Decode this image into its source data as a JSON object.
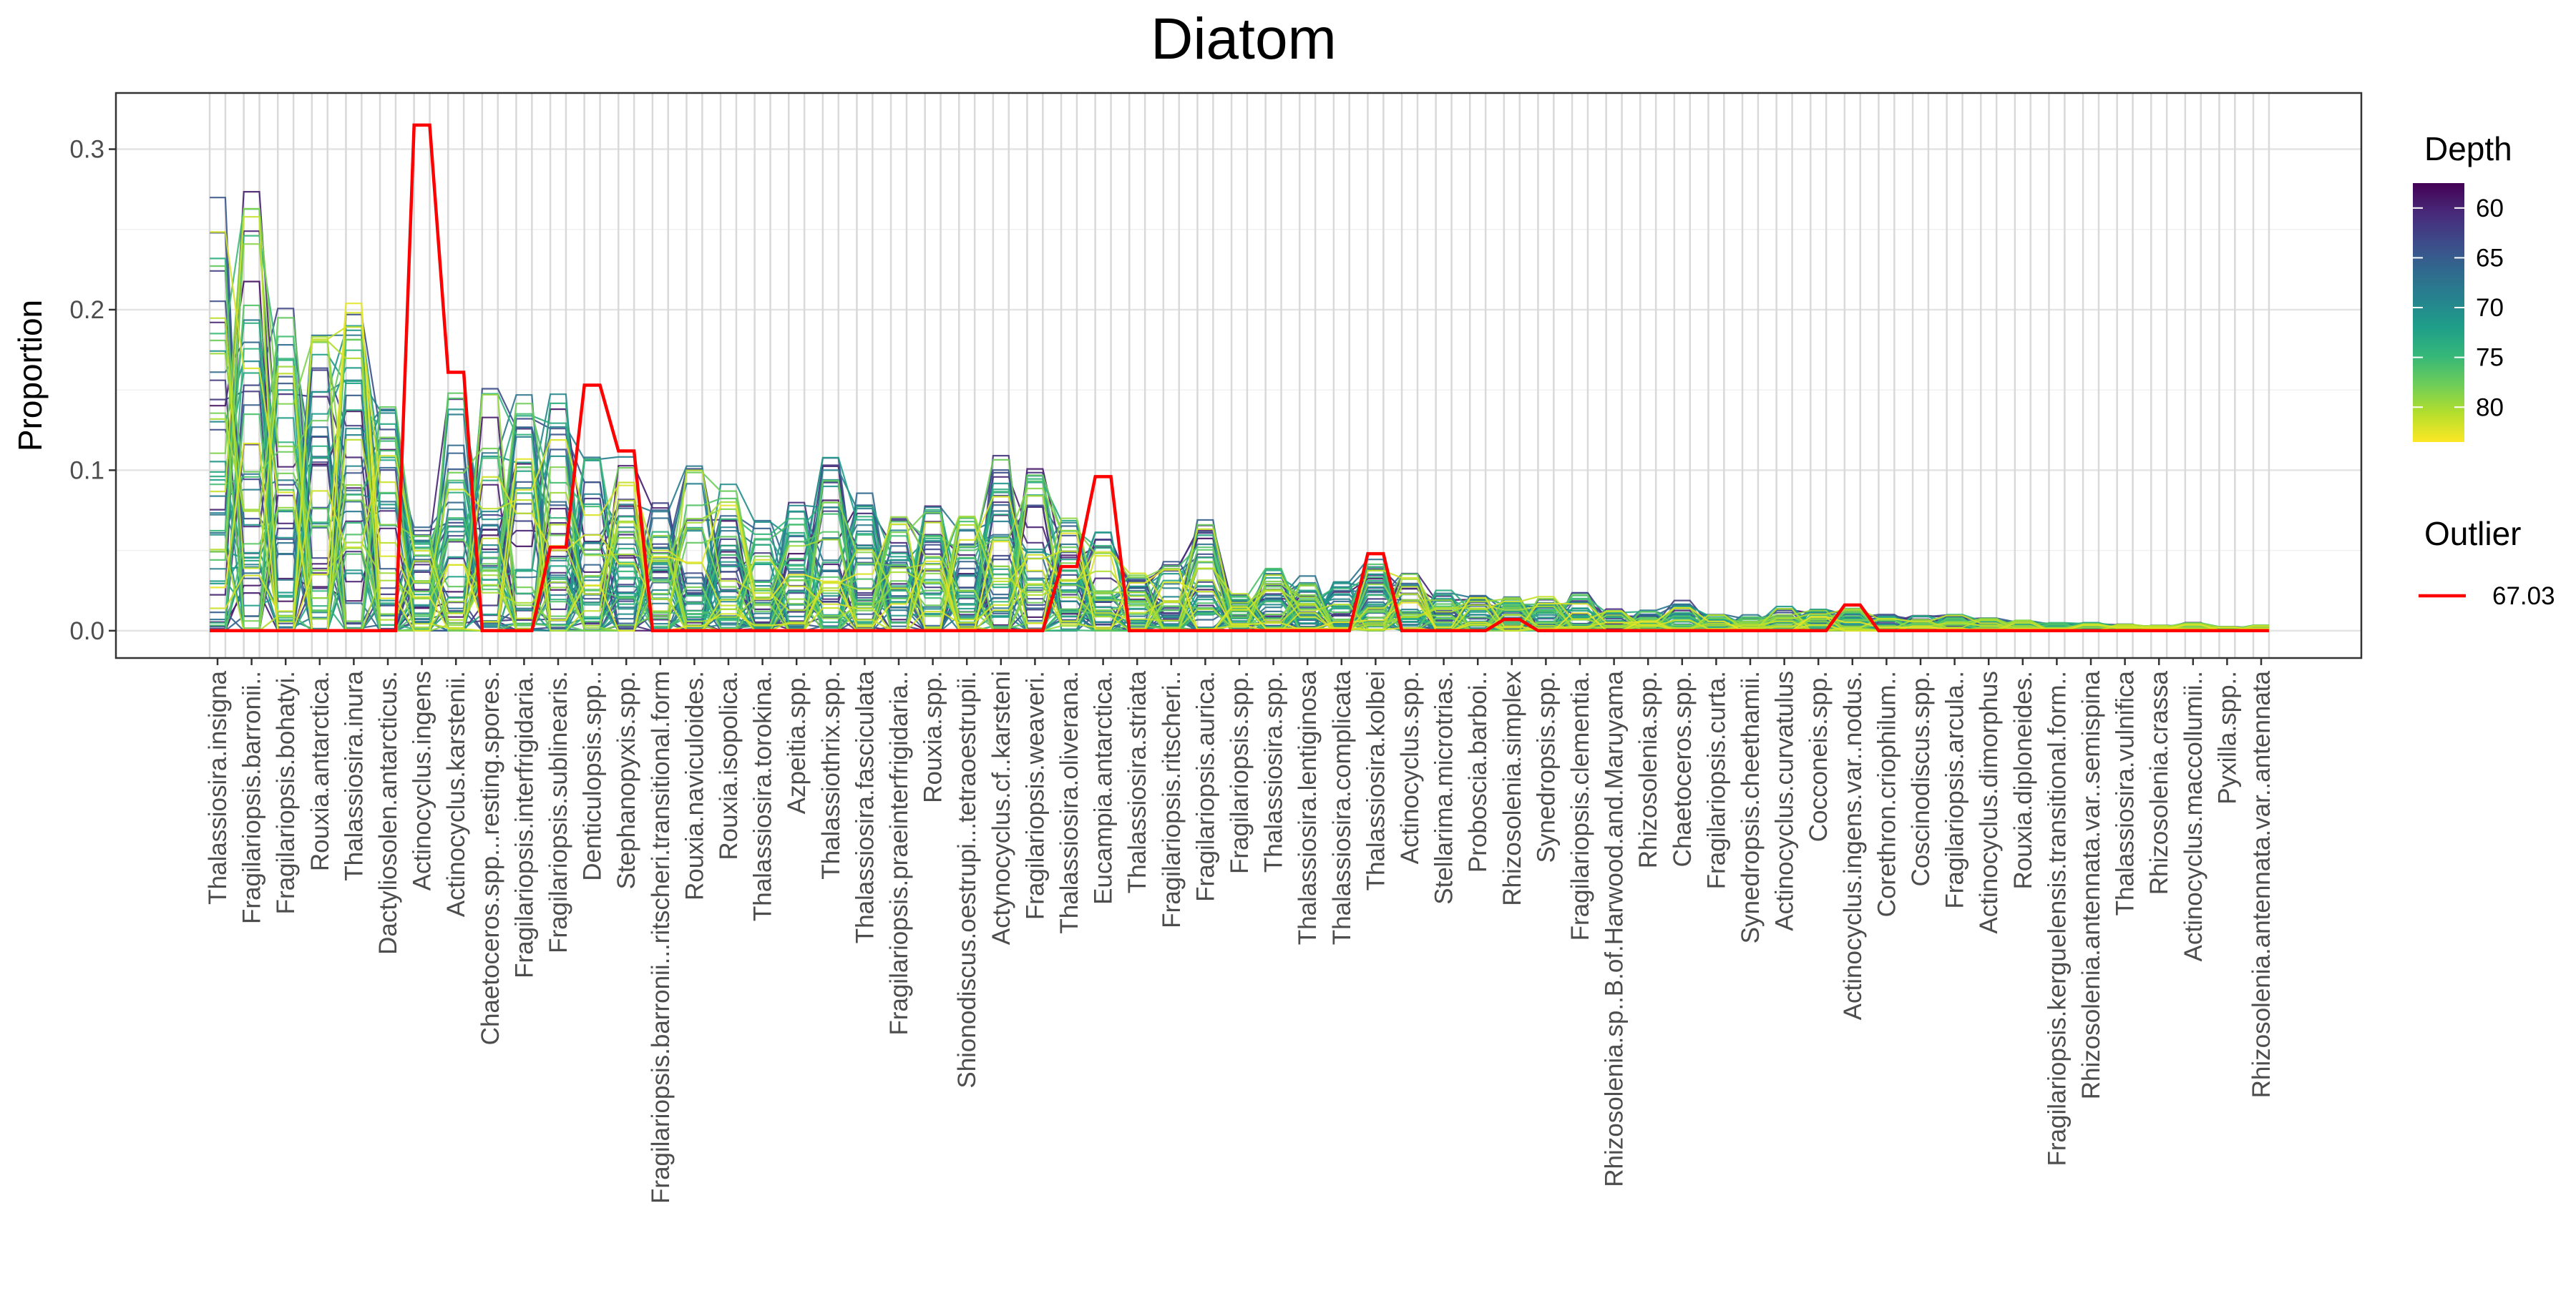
{
  "chart_data": {
    "type": "line",
    "title": "Diatom",
    "xlabel": "",
    "ylabel": "Proportion",
    "ylim": [
      -0.017,
      0.335
    ],
    "yticks": [
      0.0,
      0.1,
      0.2,
      0.3
    ],
    "ytick_labels": [
      "0.0",
      "0.1",
      "0.2",
      "0.3"
    ],
    "grid": true,
    "legend_position": "right",
    "categories": [
      "Thalassiosira.insigna",
      "Fragilariopsis.barronii..",
      "Fragilariopsis.bohatyi.",
      "Rouxia.antarctica.",
      "Thalassiosira.inura",
      "Dactyliosolen.antarcticus.",
      "Actinocyclus.ingens",
      "Actinocyclus.karstenii.",
      "Chaetoceros.spp...resting.spores.",
      "Fragilariopsis.interfrigidaria.",
      "Fragilariopsis.sublinearis.",
      "Denticulopsis.spp..",
      "Stephanopyxis.spp.",
      "Fragilariopsis.barronii...ritscheri.transitional.form",
      "Rouxia.naviculoides.",
      "Rouxia.isopolica.",
      "Thalassiosira.torokina.",
      "Azpeitia.spp.",
      "Thalassiothrix.spp.",
      "Thalassiosira.fasciculata",
      "Fragilariopsis.praeinterfrigidaria..",
      "Rouxia.spp.",
      "Shionodiscus.oestrupi...tetraoestrupii.",
      "Actynocyclus.cf..karsteni",
      "Fragilariopsis.weaveri.",
      "Thalassiosira.oliverana.",
      "Eucampia.antarctica.",
      "Thalassiosira.striata",
      "Fragilariopsis.ritscheri..",
      "Fragilariopsis.aurica.",
      "Fragilariopsis.spp.",
      "Thalassiosira.spp.",
      "Thalassiosira.lentiginosa",
      "Thalassiosira.complicata",
      "Thalassiosira.kolbei",
      "Actinocyclus.spp.",
      "Stellarima.microtrias.",
      "Proboscia.barboi..",
      "Rhizosolenia.simplex",
      "Synedropsis.spp.",
      "Fragilariopsis.clementia.",
      "Rhizosolenia.sp..B.of.Harwood.and.Maruyama",
      "Rhizosolenia.spp.",
      "Chaetoceros.spp.",
      "Fragilariopsis.curta.",
      "Synedropsis.cheethamii.",
      "Actinocyclus.curvatulus",
      "Cocconeis.spp.",
      "Actinocyclus.ingens.var..nodus.",
      "Corethron.criophilum..",
      "Coscinodiscus.spp.",
      "Fragilariopsis.arcula..",
      "Actinocyclus.dimorphus",
      "Rouxia.diploneides.",
      "Fragilariopsis.kerguelensis.transitional.form..",
      "Rhizosolenia.antennata.var..semispina",
      "Thalassiosira.vulnifica",
      "Rhizosolenia.crassa",
      "Actinocyclus.maccollumii..",
      "Pyxilla.spp..",
      "Rhizosolenia.antennata.var..antennata"
    ],
    "category_max": [
      0.272,
      0.278,
      0.203,
      0.184,
      0.207,
      0.145,
      0.065,
      0.15,
      0.152,
      0.163,
      0.157,
      0.124,
      0.11,
      0.095,
      0.128,
      0.109,
      0.085,
      0.095,
      0.13,
      0.104,
      0.088,
      0.093,
      0.089,
      0.13,
      0.121,
      0.083,
      0.073,
      0.045,
      0.051,
      0.082,
      0.031,
      0.047,
      0.042,
      0.036,
      0.055,
      0.046,
      0.03,
      0.026,
      0.025,
      0.025,
      0.028,
      0.016,
      0.015,
      0.023,
      0.012,
      0.012,
      0.02,
      0.018,
      0.017,
      0.012,
      0.011,
      0.012,
      0.01,
      0.008,
      0.006,
      0.006,
      0.005,
      0.004,
      0.006,
      0.003,
      0.004
    ],
    "n_samples": 60,
    "depth_colorbar": {
      "title": "Depth",
      "ticks": [
        60,
        65,
        70,
        75,
        80
      ],
      "range": [
        57.5,
        83.5
      ],
      "colors": [
        "#440154",
        "#482878",
        "#3e4989",
        "#31688e",
        "#26828e",
        "#1f9e89",
        "#35b779",
        "#6dcd59",
        "#b4de2c",
        "#fde725"
      ]
    },
    "outlier": {
      "legend_title": "Outlier",
      "name": "67.03",
      "color": "#ff0000",
      "values": [
        0,
        0,
        0,
        0,
        0,
        0,
        0.315,
        0.161,
        0,
        0,
        0.052,
        0.153,
        0.112,
        0,
        0,
        0,
        0,
        0,
        0,
        0,
        0,
        0,
        0,
        0,
        0,
        0.04,
        0.096,
        0,
        0,
        0,
        0,
        0,
        0,
        0,
        0.048,
        0,
        0,
        0,
        0.007,
        0,
        0,
        0,
        0,
        0,
        0,
        0,
        0,
        0,
        0.016,
        0,
        0,
        0,
        0,
        0,
        0,
        0,
        0,
        0,
        0,
        0,
        0
      ]
    }
  }
}
